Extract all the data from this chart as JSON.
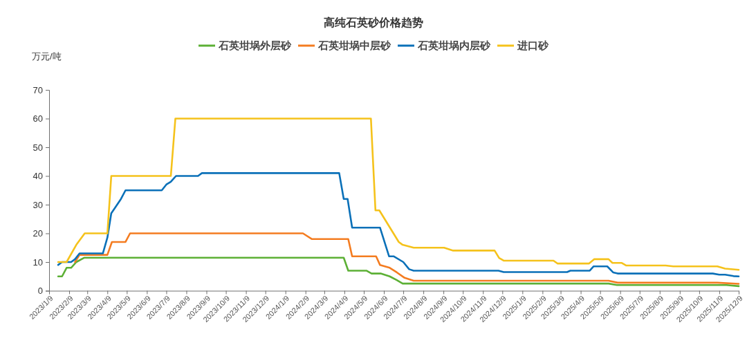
{
  "chart_data": {
    "type": "line",
    "title": "高纯石英砂价格趋势",
    "ylabel": "万元/吨",
    "legend": "top",
    "xlim": [
      "2023-01-09",
      "2025-12-09"
    ],
    "xticks": [
      {
        "value": "2023-01-09",
        "label": "2023/1/9"
      },
      {
        "value": "2023-02-09",
        "label": "2023/2/9"
      },
      {
        "value": "2023-03-09",
        "label": "2023/3/9"
      },
      {
        "value": "2023-04-09",
        "label": "2023/4/9"
      },
      {
        "value": "2023-05-09",
        "label": "2023/5/9"
      },
      {
        "value": "2023-06-09",
        "label": "2023/6/9"
      },
      {
        "value": "2023-07-09",
        "label": "2023/7/9"
      },
      {
        "value": "2023-08-09",
        "label": "2023/8/9"
      },
      {
        "value": "2023-09-09",
        "label": "2023/9/9"
      },
      {
        "value": "2023-10-09",
        "label": "2023/10/9"
      },
      {
        "value": "2023-11-09",
        "label": "2023/11/9"
      },
      {
        "value": "2023-12-09",
        "label": "2023/12/9"
      },
      {
        "value": "2024-01-09",
        "label": "2024/1/9"
      },
      {
        "value": "2024-02-09",
        "label": "2024/2/9"
      },
      {
        "value": "2024-03-09",
        "label": "2024/3/9"
      },
      {
        "value": "2024-04-09",
        "label": "2024/4/9"
      },
      {
        "value": "2024-05-09",
        "label": "2024/5/9"
      },
      {
        "value": "2024-06-09",
        "label": "2024/6/9"
      },
      {
        "value": "2024-07-09",
        "label": "2024/7/9"
      },
      {
        "value": "2024-08-09",
        "label": "2024/8/9"
      },
      {
        "value": "2024-09-09",
        "label": "2024/9/9"
      },
      {
        "value": "2024-10-09",
        "label": "2024/10/9"
      },
      {
        "value": "2024-11-09",
        "label": "2024/11/9"
      },
      {
        "value": "2024-12-09",
        "label": "2024/12/9"
      },
      {
        "value": "2025-01-09",
        "label": "2025/1/9"
      },
      {
        "value": "2025-02-09",
        "label": "2025/2/9"
      },
      {
        "value": "2025-03-09",
        "label": "2025/3/9"
      },
      {
        "value": "2025-04-09",
        "label": "2025/4/9"
      },
      {
        "value": "2025-05-09",
        "label": "2025/5/9"
      },
      {
        "value": "2025-06-09",
        "label": "2025/6/9"
      },
      {
        "value": "2025-07-09",
        "label": "2025/7/9"
      },
      {
        "value": "2025-08-09",
        "label": "2025/8/9"
      },
      {
        "value": "2025-09-09",
        "label": "2025/9/9"
      },
      {
        "value": "2025-10-09",
        "label": "2025/10/9"
      },
      {
        "value": "2025-11-09",
        "label": "2025/11/9"
      },
      {
        "value": "2025-12-09",
        "label": "2025/12/9"
      }
    ],
    "ylim": [
      0,
      70
    ],
    "yticks": [
      0,
      10,
      20,
      30,
      40,
      50,
      60,
      70
    ],
    "series": [
      {
        "name": "石英坩埚外层砂",
        "color": "#5cb035",
        "x": [
          "2023-01-23",
          "2023-01-29",
          "2023-02-05",
          "2023-02-12",
          "2023-02-20",
          "2023-03-04",
          "2024-04-08",
          "2024-04-15",
          "2024-05-13",
          "2024-05-21",
          "2024-06-04",
          "2024-06-18",
          "2024-06-29",
          "2024-07-08",
          "2025-05-22",
          "2025-06-04",
          "2025-11-20",
          "2025-12-09"
        ],
        "values": [
          5,
          5,
          8,
          8,
          10,
          11.5,
          11.5,
          7,
          7,
          6,
          6,
          5,
          3.7,
          2.5,
          2.5,
          2,
          2,
          1.6
        ]
      },
      {
        "name": "石英坩埚中层砂",
        "color": "#f47c20",
        "x": [
          "2023-02-18",
          "2023-02-25",
          "2023-04-09",
          "2023-04-16",
          "2023-05-07",
          "2023-05-14",
          "2024-02-05",
          "2024-02-19",
          "2024-04-15",
          "2024-04-21",
          "2024-05-28",
          "2024-06-03",
          "2024-06-18",
          "2024-06-29",
          "2024-07-11",
          "2024-07-25",
          "2025-05-22",
          "2025-06-05",
          "2025-11-06",
          "2025-12-09"
        ],
        "values": [
          10,
          12.5,
          12.5,
          17,
          17,
          20,
          20,
          18,
          18,
          12,
          12,
          9,
          8,
          6.4,
          4.5,
          3.5,
          3.5,
          2.8,
          2.8,
          2.4
        ]
      },
      {
        "name": "石英坩埚内层砂",
        "color": "#0a70b8",
        "x": [
          "2023-01-23",
          "2023-01-29",
          "2023-02-12",
          "2023-02-18",
          "2023-02-25",
          "2023-04-02",
          "2023-04-09",
          "2023-04-15",
          "2023-04-21",
          "2023-04-30",
          "2023-05-07",
          "2023-07-02",
          "2023-07-09",
          "2023-07-16",
          "2023-07-24",
          "2023-08-27",
          "2023-09-02",
          "2024-04-01",
          "2024-04-08",
          "2024-04-14",
          "2024-04-21",
          "2024-06-03",
          "2024-06-17",
          "2024-06-24",
          "2024-07-09",
          "2024-07-18",
          "2024-07-25",
          "2024-12-03",
          "2024-12-11",
          "2025-03-19",
          "2025-03-24",
          "2025-04-23",
          "2025-04-29",
          "2025-05-20",
          "2025-05-29",
          "2025-06-05",
          "2025-10-30",
          "2025-11-09",
          "2025-11-18",
          "2025-12-01",
          "2025-12-09"
        ],
        "values": [
          9,
          10,
          10,
          11,
          13,
          13,
          18.5,
          27,
          29,
          32,
          35,
          35,
          37,
          38,
          40,
          40,
          41,
          41,
          32,
          32,
          22,
          22,
          12,
          12,
          10,
          7.5,
          7,
          7,
          6.5,
          6.5,
          7,
          7,
          8.5,
          8.5,
          6.4,
          6,
          6,
          5.6,
          5.6,
          5.1,
          5
        ]
      },
      {
        "name": "进口砂",
        "color": "#f5c21b",
        "x": [
          "2023-01-23",
          "2023-02-05",
          "2023-02-20",
          "2023-03-05",
          "2023-04-09",
          "2023-04-15",
          "2023-07-16",
          "2023-07-23",
          "2024-05-20",
          "2024-05-27",
          "2024-06-02",
          "2024-07-02",
          "2024-07-08",
          "2024-07-25",
          "2024-09-10",
          "2024-09-24",
          "2024-11-27",
          "2024-12-04",
          "2024-12-11",
          "2025-02-26",
          "2025-03-04",
          "2025-04-22",
          "2025-04-30",
          "2025-05-22",
          "2025-05-28",
          "2025-06-11",
          "2025-06-18",
          "2025-08-18",
          "2025-08-30",
          "2025-11-06",
          "2025-11-18",
          "2025-12-09"
        ],
        "values": [
          10,
          10,
          16,
          20,
          20,
          40,
          40,
          60,
          60,
          28,
          28,
          17,
          16,
          15,
          15,
          14,
          14,
          11.4,
          10.5,
          10.5,
          9.5,
          9.5,
          11,
          11,
          9.7,
          9.7,
          8.8,
          8.8,
          8.5,
          8.5,
          7.7,
          7.3
        ]
      }
    ]
  }
}
